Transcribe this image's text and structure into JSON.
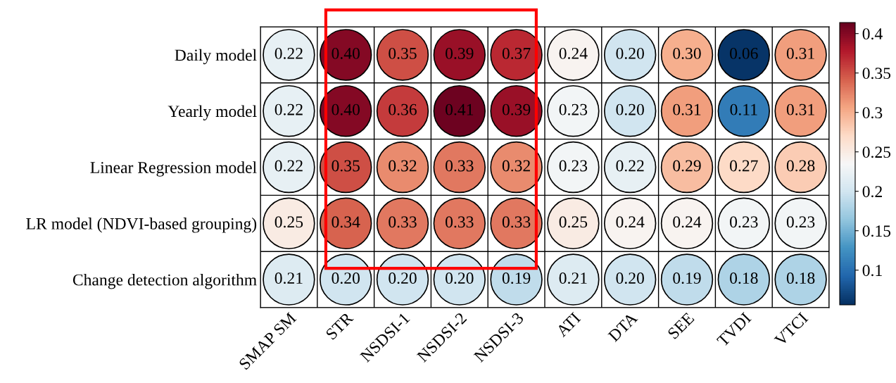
{
  "chart_data": {
    "type": "heatmap",
    "categories": [
      "SMAP SM",
      "STR",
      "NSDSI-1",
      "NSDSI-2",
      "NSDSI-3",
      "ATI",
      "DTA",
      "SEE",
      "TVDI",
      "VTCI"
    ],
    "y_categories": [
      "Daily model",
      "Yearly model",
      "Linear Regression model",
      "LR model (NDVI-based grouping)",
      "Change detection algorithm"
    ],
    "cells": [
      [
        0.22,
        0.4,
        0.35,
        0.39,
        0.37,
        0.24,
        0.2,
        0.3,
        0.06,
        0.31
      ],
      [
        0.22,
        0.4,
        0.36,
        0.41,
        0.39,
        0.23,
        0.2,
        0.31,
        0.11,
        0.31
      ],
      [
        0.22,
        0.35,
        0.32,
        0.33,
        0.32,
        0.23,
        0.22,
        0.29,
        0.27,
        0.28
      ],
      [
        0.25,
        0.34,
        0.33,
        0.33,
        0.33,
        0.25,
        0.24,
        0.24,
        0.23,
        0.23
      ],
      [
        0.21,
        0.2,
        0.2,
        0.2,
        0.19,
        0.21,
        0.2,
        0.19,
        0.18,
        0.18
      ]
    ],
    "cell_labels": [
      [
        "0.22",
        "0.40",
        "0.35",
        "0.39",
        "0.37",
        "0.24",
        "0.20",
        "0.30",
        "0.06",
        "0.31"
      ],
      [
        "0.22",
        "0.40",
        "0.36",
        "0.41",
        "0.39",
        "0.23",
        "0.20",
        "0.31",
        "0.11",
        "0.31"
      ],
      [
        "0.22",
        "0.35",
        "0.32",
        "0.33",
        "0.32",
        "0.23",
        "0.22",
        "0.29",
        "0.27",
        "0.28"
      ],
      [
        "0.25",
        "0.34",
        "0.33",
        "0.33",
        "0.33",
        "0.25",
        "0.24",
        "0.24",
        "0.23",
        "0.23"
      ],
      [
        "0.21",
        "0.20",
        "0.20",
        "0.20",
        "0.19",
        "0.21",
        "0.20",
        "0.19",
        "0.18",
        "0.18"
      ]
    ],
    "clim": [
      0.056,
      0.414
    ],
    "cticks": [
      0.1,
      0.15,
      0.2,
      0.25,
      0.3,
      0.35,
      0.4
    ]
  }
}
